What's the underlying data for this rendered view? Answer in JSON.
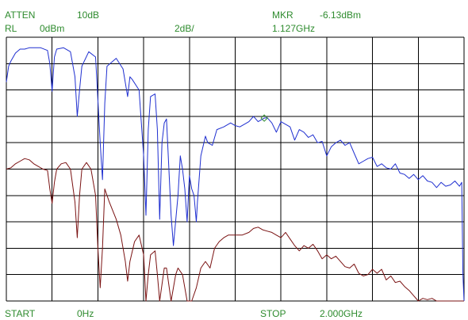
{
  "header": {
    "atten_label": "ATTEN",
    "atten_value": "10dB",
    "rl_label": "RL",
    "rl_value": "0dBm",
    "scale_value": "2dB/",
    "mkr_label": "MKR",
    "mkr_amplitude": "-6.13dBm",
    "mkr_frequency": "1.127GHz"
  },
  "footer": {
    "start_label": "START",
    "start_value": "0Hz",
    "stop_label": "STOP",
    "stop_value": "2.000GHz"
  },
  "colors": {
    "text": "#2e8b2e",
    "grid": "#000000",
    "trace_a": "#1f2fd0",
    "trace_b": "#7a1212",
    "marker": "#2e8b2e"
  },
  "chart_data": {
    "type": "line",
    "x_unit": "GHz",
    "y_unit": "dBm",
    "xlim": [
      0,
      2.0
    ],
    "ylim": [
      -20,
      0
    ],
    "grid": true,
    "x_divisions": 10,
    "y_divisions": 10,
    "marker": {
      "x": 1.127,
      "y": -6.13
    },
    "series": [
      {
        "color": "#1f2fd0",
        "points": [
          [
            0.0,
            -3.4
          ],
          [
            0.01,
            -2.2
          ],
          [
            0.02,
            -1.8
          ],
          [
            0.04,
            -1.2
          ],
          [
            0.06,
            -0.9
          ],
          [
            0.08,
            -0.9
          ],
          [
            0.1,
            -0.8
          ],
          [
            0.12,
            -0.8
          ],
          [
            0.15,
            -0.8
          ],
          [
            0.18,
            -1.0
          ],
          [
            0.19,
            -2.0
          ],
          [
            0.2,
            -4.1
          ],
          [
            0.21,
            -1.5
          ],
          [
            0.22,
            -0.9
          ],
          [
            0.25,
            -0.8
          ],
          [
            0.28,
            -1.1
          ],
          [
            0.3,
            -3.0
          ],
          [
            0.31,
            -6.0
          ],
          [
            0.32,
            -4.0
          ],
          [
            0.33,
            -2.2
          ],
          [
            0.36,
            -1.1
          ],
          [
            0.39,
            -1.5
          ],
          [
            0.41,
            -8.0
          ],
          [
            0.42,
            -10.8
          ],
          [
            0.43,
            -5.0
          ],
          [
            0.44,
            -2.2
          ],
          [
            0.48,
            -1.6
          ],
          [
            0.51,
            -2.4
          ],
          [
            0.53,
            -4.5
          ],
          [
            0.54,
            -3.0
          ],
          [
            0.55,
            -3.2
          ],
          [
            0.58,
            -4.0
          ],
          [
            0.6,
            -9.0
          ],
          [
            0.61,
            -13.5
          ],
          [
            0.62,
            -7.0
          ],
          [
            0.63,
            -4.5
          ],
          [
            0.65,
            -4.3
          ],
          [
            0.66,
            -7.0
          ],
          [
            0.67,
            -13.8
          ],
          [
            0.68,
            -8.0
          ],
          [
            0.69,
            -6.5
          ],
          [
            0.7,
            -6.2
          ],
          [
            0.72,
            -13.5
          ],
          [
            0.73,
            -15.8
          ],
          [
            0.75,
            -12.0
          ],
          [
            0.76,
            -9.0
          ],
          [
            0.77,
            -10.0
          ],
          [
            0.78,
            -11.5
          ],
          [
            0.79,
            -14.0
          ],
          [
            0.8,
            -10.5
          ],
          [
            0.81,
            -11.5
          ],
          [
            0.82,
            -12.0
          ],
          [
            0.83,
            -14.0
          ],
          [
            0.835,
            -12.5
          ],
          [
            0.85,
            -9.0
          ],
          [
            0.87,
            -7.5
          ],
          [
            0.88,
            -8.0
          ],
          [
            0.9,
            -8.2
          ],
          [
            0.92,
            -7.0
          ],
          [
            0.95,
            -6.8
          ],
          [
            0.98,
            -6.5
          ],
          [
            1.0,
            -6.7
          ],
          [
            1.02,
            -6.8
          ],
          [
            1.04,
            -6.6
          ],
          [
            1.06,
            -6.4
          ],
          [
            1.08,
            -6.0
          ],
          [
            1.1,
            -6.4
          ],
          [
            1.127,
            -6.13
          ],
          [
            1.14,
            -6.1
          ],
          [
            1.16,
            -6.5
          ],
          [
            1.18,
            -7.2
          ],
          [
            1.2,
            -6.4
          ],
          [
            1.22,
            -6.6
          ],
          [
            1.24,
            -6.8
          ],
          [
            1.26,
            -7.8
          ],
          [
            1.28,
            -7.0
          ],
          [
            1.3,
            -7.2
          ],
          [
            1.32,
            -7.6
          ],
          [
            1.34,
            -7.4
          ],
          [
            1.36,
            -8.0
          ],
          [
            1.38,
            -7.9
          ],
          [
            1.4,
            -9.0
          ],
          [
            1.42,
            -8.3
          ],
          [
            1.44,
            -8.0
          ],
          [
            1.46,
            -7.8
          ],
          [
            1.48,
            -8.2
          ],
          [
            1.5,
            -8.0
          ],
          [
            1.52,
            -8.8
          ],
          [
            1.54,
            -9.6
          ],
          [
            1.56,
            -9.4
          ],
          [
            1.58,
            -9.2
          ],
          [
            1.6,
            -9.1
          ],
          [
            1.62,
            -9.8
          ],
          [
            1.64,
            -9.6
          ],
          [
            1.66,
            -9.9
          ],
          [
            1.68,
            -10.0
          ],
          [
            1.7,
            -9.6
          ],
          [
            1.72,
            -10.3
          ],
          [
            1.74,
            -10.4
          ],
          [
            1.76,
            -10.7
          ],
          [
            1.78,
            -10.4
          ],
          [
            1.8,
            -10.8
          ],
          [
            1.82,
            -10.5
          ],
          [
            1.84,
            -10.9
          ],
          [
            1.86,
            -11.0
          ],
          [
            1.88,
            -11.4
          ],
          [
            1.9,
            -11.0
          ],
          [
            1.92,
            -11.3
          ],
          [
            1.94,
            -11.2
          ],
          [
            1.96,
            -10.9
          ],
          [
            1.98,
            -11.3
          ],
          [
            1.99,
            -11.0
          ],
          [
            1.995,
            -18.0
          ],
          [
            2.0,
            -20.0
          ]
        ]
      },
      {
        "color": "#7a1212",
        "points": [
          [
            0.0,
            -10.0
          ],
          [
            0.02,
            -9.9
          ],
          [
            0.04,
            -9.6
          ],
          [
            0.06,
            -9.4
          ],
          [
            0.08,
            -9.2
          ],
          [
            0.1,
            -9.3
          ],
          [
            0.12,
            -9.6
          ],
          [
            0.14,
            -9.8
          ],
          [
            0.16,
            -10.0
          ],
          [
            0.18,
            -10.1
          ],
          [
            0.19,
            -11.5
          ],
          [
            0.2,
            -12.6
          ],
          [
            0.21,
            -11.0
          ],
          [
            0.22,
            -10.0
          ],
          [
            0.24,
            -9.6
          ],
          [
            0.26,
            -9.5
          ],
          [
            0.28,
            -10.0
          ],
          [
            0.3,
            -12.5
          ],
          [
            0.31,
            -15.2
          ],
          [
            0.32,
            -12.0
          ],
          [
            0.33,
            -10.0
          ],
          [
            0.35,
            -9.5
          ],
          [
            0.37,
            -10.0
          ],
          [
            0.39,
            -12.0
          ],
          [
            0.4,
            -16.0
          ],
          [
            0.41,
            -19.0
          ],
          [
            0.42,
            -16.0
          ],
          [
            0.43,
            -11.5
          ],
          [
            0.45,
            -12.5
          ],
          [
            0.48,
            -13.8
          ],
          [
            0.5,
            -15.0
          ],
          [
            0.52,
            -17.0
          ],
          [
            0.53,
            -18.5
          ],
          [
            0.54,
            -17.0
          ],
          [
            0.56,
            -15.5
          ],
          [
            0.58,
            -15.0
          ],
          [
            0.6,
            -16.5
          ],
          [
            0.61,
            -20.0
          ],
          [
            0.62,
            -18.0
          ],
          [
            0.63,
            -16.5
          ],
          [
            0.65,
            -16.2
          ],
          [
            0.66,
            -18.0
          ],
          [
            0.67,
            -20.0
          ],
          [
            0.69,
            -17.5
          ],
          [
            0.7,
            -17.5
          ],
          [
            0.72,
            -20.0
          ],
          [
            0.74,
            -18.0
          ],
          [
            0.75,
            -17.5
          ],
          [
            0.77,
            -18.0
          ],
          [
            0.79,
            -20.0
          ],
          [
            0.81,
            -20.0
          ],
          [
            0.83,
            -19.0
          ],
          [
            0.85,
            -17.5
          ],
          [
            0.87,
            -17.0
          ],
          [
            0.89,
            -17.5
          ],
          [
            0.91,
            -16.0
          ],
          [
            0.93,
            -15.5
          ],
          [
            0.95,
            -15.2
          ],
          [
            0.97,
            -15.0
          ],
          [
            1.0,
            -15.0
          ],
          [
            1.03,
            -15.0
          ],
          [
            1.06,
            -14.8
          ],
          [
            1.08,
            -14.5
          ],
          [
            1.1,
            -14.4
          ],
          [
            1.12,
            -14.6
          ],
          [
            1.14,
            -14.7
          ],
          [
            1.16,
            -14.8
          ],
          [
            1.18,
            -15.0
          ],
          [
            1.2,
            -15.2
          ],
          [
            1.22,
            -14.8
          ],
          [
            1.24,
            -15.3
          ],
          [
            1.26,
            -15.8
          ],
          [
            1.28,
            -16.2
          ],
          [
            1.3,
            -15.8
          ],
          [
            1.32,
            -16.0
          ],
          [
            1.34,
            -15.7
          ],
          [
            1.36,
            -16.2
          ],
          [
            1.38,
            -16.8
          ],
          [
            1.4,
            -16.5
          ],
          [
            1.42,
            -16.8
          ],
          [
            1.44,
            -16.6
          ],
          [
            1.46,
            -17.0
          ],
          [
            1.48,
            -17.4
          ],
          [
            1.5,
            -17.5
          ],
          [
            1.52,
            -17.2
          ],
          [
            1.54,
            -17.9
          ],
          [
            1.56,
            -18.1
          ],
          [
            1.58,
            -18.0
          ],
          [
            1.6,
            -17.6
          ],
          [
            1.62,
            -17.9
          ],
          [
            1.64,
            -17.6
          ],
          [
            1.66,
            -18.4
          ],
          [
            1.68,
            -18.1
          ],
          [
            1.7,
            -18.6
          ],
          [
            1.72,
            -18.5
          ],
          [
            1.74,
            -18.9
          ],
          [
            1.76,
            -19.2
          ],
          [
            1.78,
            -19.6
          ],
          [
            1.8,
            -20.0
          ],
          [
            1.82,
            -19.8
          ],
          [
            1.84,
            -19.9
          ],
          [
            1.86,
            -19.8
          ],
          [
            1.88,
            -20.0
          ],
          [
            1.9,
            -20.0
          ],
          [
            1.95,
            -20.0
          ],
          [
            2.0,
            -20.0
          ]
        ]
      }
    ]
  }
}
